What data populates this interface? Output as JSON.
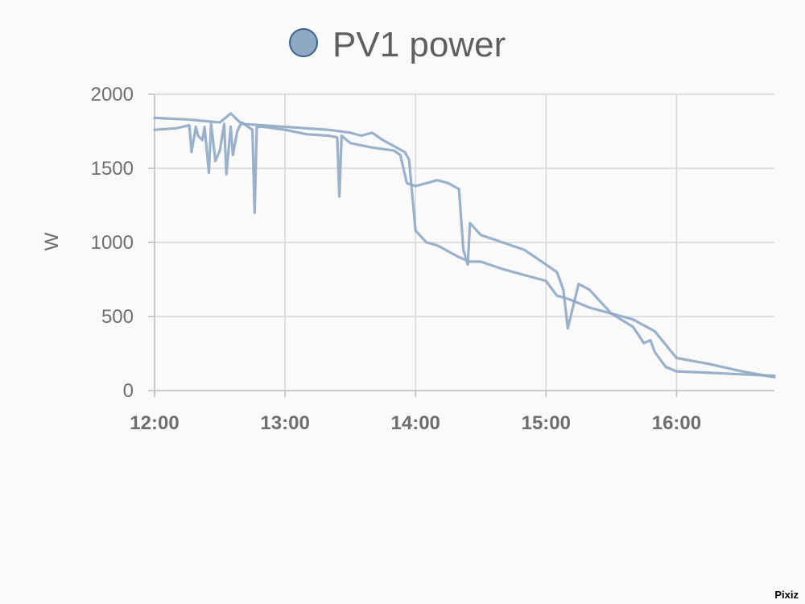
{
  "chart_data": {
    "type": "line",
    "title": "",
    "legend": {
      "placement": "top-center",
      "entries": [
        {
          "name": "PV1 power",
          "color": "#8fa9c4",
          "marker_border": "#3f6287"
        }
      ]
    },
    "ylabel": "W",
    "xlabel": "",
    "xlim": [
      "12:00",
      "16:45"
    ],
    "ylim": [
      0,
      2000
    ],
    "x_ticks": [
      "12:00",
      "13:00",
      "14:00",
      "15:00",
      "16:00"
    ],
    "y_ticks": [
      "0",
      "500",
      "1000",
      "1500",
      "2000"
    ],
    "grid": true,
    "line_color": "#8fa9c4",
    "series": [
      {
        "name": "PV1 power",
        "x": [
          "12:00",
          "12:10",
          "12:16",
          "12:17",
          "12:19",
          "12:20",
          "12:22",
          "12:23",
          "12:25",
          "12:26",
          "12:28",
          "12:30",
          "12:32",
          "12:33",
          "12:35",
          "12:36",
          "12:38",
          "12:40",
          "12:45",
          "12:46",
          "12:47",
          "12:50",
          "13:00",
          "13:10",
          "13:20",
          "13:24",
          "13:25",
          "13:26",
          "13:30",
          "13:40",
          "13:50",
          "13:53",
          "13:56",
          "14:00",
          "14:05",
          "14:10",
          "14:15",
          "14:20",
          "14:22",
          "14:24",
          "14:25",
          "14:30",
          "14:40",
          "14:50",
          "15:00",
          "15:05",
          "15:08",
          "15:10",
          "15:15",
          "15:20",
          "15:30",
          "15:40",
          "15:45",
          "15:48",
          "15:50",
          "15:55",
          "16:00",
          "16:15",
          "16:30",
          "16:45"
        ],
        "y": [
          1760,
          1770,
          1790,
          1610,
          1780,
          1720,
          1690,
          1780,
          1470,
          1800,
          1550,
          1620,
          1800,
          1460,
          1780,
          1590,
          1750,
          1810,
          1760,
          1200,
          1780,
          1780,
          1760,
          1730,
          1720,
          1710,
          1310,
          1720,
          1670,
          1640,
          1620,
          1590,
          1400,
          1380,
          1400,
          1420,
          1400,
          1360,
          950,
          850,
          1130,
          1050,
          1000,
          950,
          850,
          800,
          680,
          420,
          720,
          680,
          520,
          430,
          320,
          340,
          260,
          160,
          130,
          120,
          110,
          100
        ]
      },
      {
        "name": "PV1 power",
        "x": [
          "12:00",
          "12:15",
          "12:30",
          "12:35",
          "12:40",
          "13:00",
          "13:20",
          "13:30",
          "13:35",
          "13:40",
          "13:45",
          "13:50",
          "13:55",
          "13:57",
          "14:00",
          "14:05",
          "14:10",
          "14:15",
          "14:20",
          "14:25",
          "14:30",
          "14:40",
          "14:50",
          "15:00",
          "15:05",
          "15:10",
          "15:20",
          "15:30",
          "15:40",
          "15:50",
          "16:00",
          "16:15",
          "16:30",
          "16:45"
        ],
        "y": [
          1840,
          1830,
          1810,
          1870,
          1800,
          1780,
          1760,
          1740,
          1720,
          1740,
          1690,
          1650,
          1610,
          1560,
          1080,
          1000,
          980,
          940,
          900,
          870,
          870,
          820,
          780,
          740,
          640,
          620,
          560,
          520,
          480,
          400,
          220,
          180,
          130,
          90
        ]
      }
    ]
  }
}
